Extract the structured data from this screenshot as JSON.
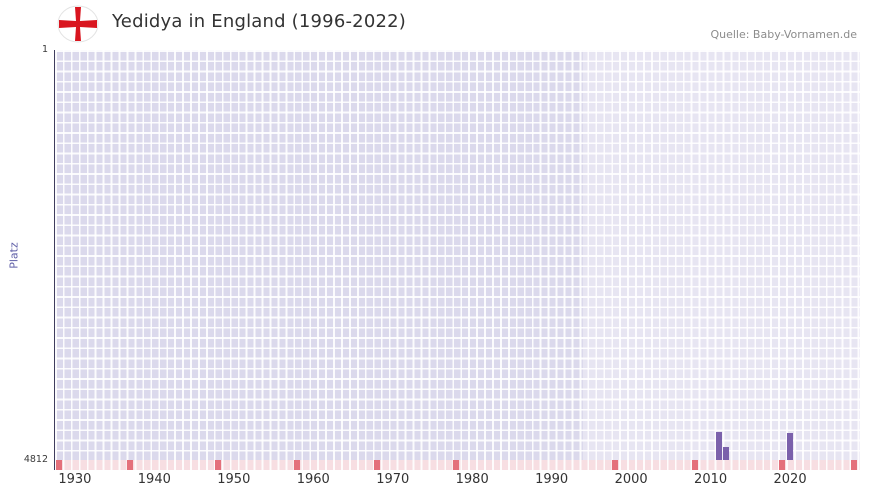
{
  "header": {
    "title": "Yedidya in England (1996-2022)",
    "source": "Quelle: Baby-Vornamen.de",
    "flag_cross_color": "#d9151f"
  },
  "chart_data": {
    "type": "bar",
    "title": "Yedidya in England (1996-2022)",
    "ylabel": "Platz",
    "xlabel": "",
    "y_axis": {
      "top_label": "1",
      "bottom_label": "4812",
      "min": 1,
      "max": 4812,
      "inverted": true
    },
    "x_range": [
      1927.5,
      2028.8
    ],
    "x_ticks": [
      1930,
      1940,
      1950,
      1960,
      1970,
      1980,
      1990,
      2000,
      2010,
      2020
    ],
    "highlight_region": {
      "from": 1994,
      "to": 2028.8
    },
    "points": [
      {
        "year": 2011,
        "rank": 4480
      },
      {
        "year": 2012,
        "rank": 4660
      },
      {
        "year": 2020,
        "rank": 4490
      }
    ],
    "unranked_marker_years": [
      1928,
      1937,
      1948,
      1958,
      1968,
      1978,
      1998,
      2008,
      2019,
      2028
    ],
    "grid": true,
    "legend": false,
    "colors": {
      "plot_bg": "#dbd9ec",
      "region_tint": "rgba(255,255,255,0.33)",
      "grid_line": "rgba(255,255,255,0.9)",
      "bar": "#7b61ab",
      "strip_bg": "#f7dee2",
      "strip_mark": "#e4707b",
      "axis_spine": "#3f3d5e",
      "ylabel_color": "#5f5fa7"
    }
  }
}
